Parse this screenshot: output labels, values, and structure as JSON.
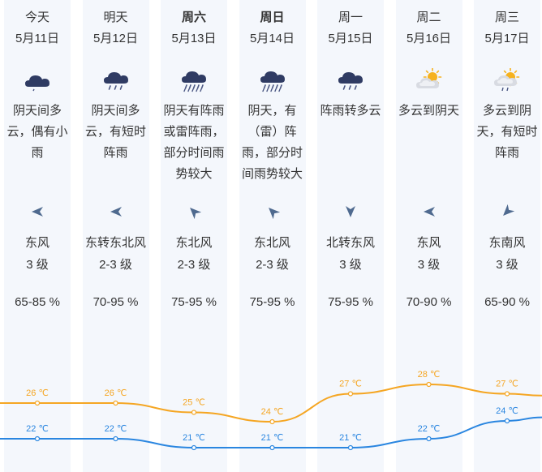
{
  "colors": {
    "high": "#f5a623",
    "low": "#2a86e0",
    "icon": "#2f3b63"
  },
  "days": [
    {
      "day": "今天",
      "bold": false,
      "date": "5月11日",
      "icon": "cloud-light-rain-icon",
      "desc": "阴天间多云，偶有小雨",
      "wind_dir": "东风",
      "wind_level": "3 级",
      "humidity": "65-85 %",
      "arrow_deg": 180,
      "high": "26 ℃",
      "low": "22 ℃",
      "high_val": 26,
      "low_val": 22
    },
    {
      "day": "明天",
      "bold": false,
      "date": "5月12日",
      "icon": "cloud-showers-icon",
      "desc": "阴天间多云，有短时阵雨",
      "wind_dir": "东转东北风",
      "wind_level": "2-3 级",
      "humidity": "70-95 %",
      "arrow_deg": 180,
      "high": "26 ℃",
      "low": "22 ℃",
      "high_val": 26,
      "low_val": 22
    },
    {
      "day": "周六",
      "bold": true,
      "date": "5月13日",
      "icon": "cloud-heavy-rain-icon",
      "desc": "阴天有阵雨或雷阵雨，部分时间雨势较大",
      "wind_dir": "东北风",
      "wind_level": "2-3 级",
      "humidity": "75-95 %",
      "arrow_deg": 225,
      "high": "25 ℃",
      "low": "21 ℃",
      "high_val": 25,
      "low_val": 21
    },
    {
      "day": "周日",
      "bold": true,
      "date": "5月14日",
      "icon": "cloud-heavy-rain-icon",
      "desc": "阴天，有（雷）阵雨，部分时间雨势较大",
      "wind_dir": "东北风",
      "wind_level": "2-3 级",
      "humidity": "75-95 %",
      "arrow_deg": 225,
      "high": "24 ℃",
      "low": "21 ℃",
      "high_val": 24,
      "low_val": 21
    },
    {
      "day": "周一",
      "bold": false,
      "date": "5月15日",
      "icon": "cloud-showers-icon",
      "desc": "阵雨转多云",
      "wind_dir": "北转东风",
      "wind_level": "3 级",
      "humidity": "75-95 %",
      "arrow_deg": 90,
      "high": "27 ℃",
      "low": "21 ℃",
      "high_val": 27,
      "low_val": 21
    },
    {
      "day": "周二",
      "bold": false,
      "date": "5月16日",
      "icon": "sun-cloud-icon",
      "desc": "多云到阴天",
      "wind_dir": "东风",
      "wind_level": "3 级",
      "humidity": "70-90 %",
      "arrow_deg": 180,
      "high": "28 ℃",
      "low": "22 ℃",
      "high_val": 28,
      "low_val": 22
    },
    {
      "day": "周三",
      "bold": false,
      "date": "5月17日",
      "icon": "sun-cloud-rain-icon",
      "desc": "多云到阴天，有短时阵雨",
      "wind_dir": "东南风",
      "wind_level": "3 级",
      "humidity": "65-90 %",
      "arrow_deg": 135,
      "high": "27 ℃",
      "low": "24 ℃",
      "high_val": 27,
      "low_val": 24
    }
  ]
}
